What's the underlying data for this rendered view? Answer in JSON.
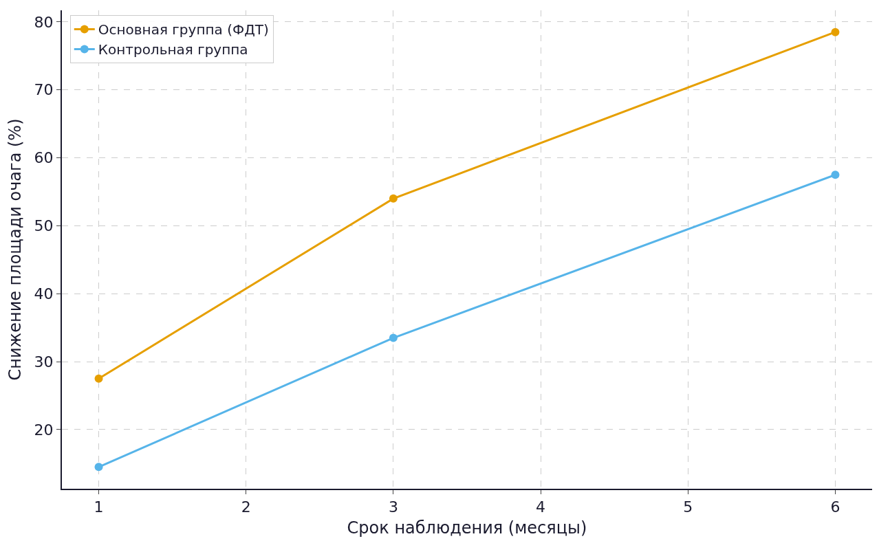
{
  "chart_data": {
    "type": "line",
    "xlabel": "Срок наблюдения (месяцы)",
    "ylabel": "Снижение площади очага (%)",
    "x": [
      1,
      3,
      6
    ],
    "series": [
      {
        "name": "Основная группа (ФДТ)",
        "color": "#e69f00",
        "values": [
          27.5,
          54,
          78.5
        ]
      },
      {
        "name": "Контрольная группа",
        "color": "#56b4e9",
        "values": [
          14.5,
          33.5,
          57.5
        ]
      }
    ],
    "xlim": [
      0.75,
      6.25
    ],
    "ylim": [
      11.3,
      81.7
    ],
    "xticks": [
      1,
      2,
      3,
      4,
      5,
      6
    ],
    "yticks": [
      20,
      30,
      40,
      50,
      60,
      70,
      80
    ],
    "grid": true,
    "legend": "top left",
    "marker": "circle",
    "line_style": "solid"
  }
}
